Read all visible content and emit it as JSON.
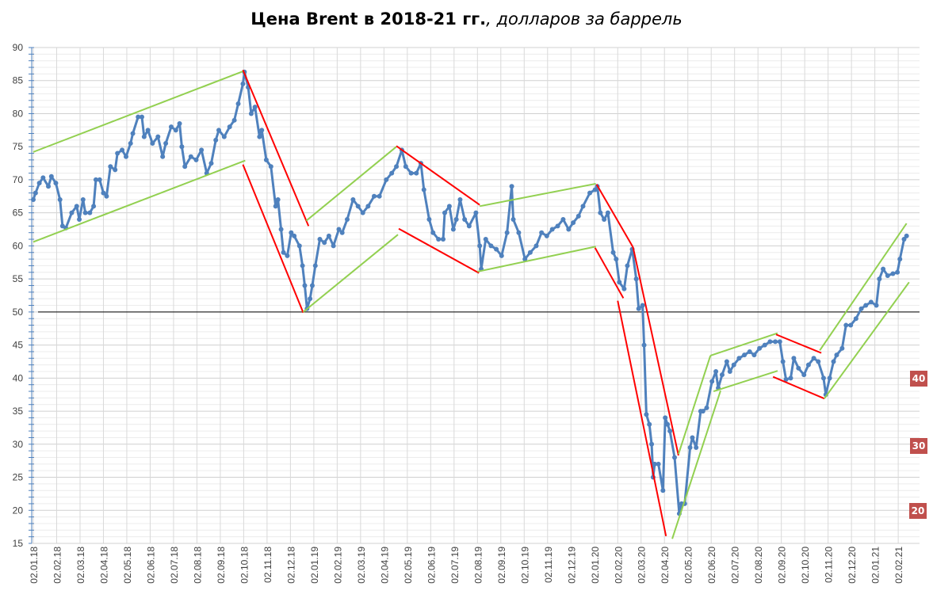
{
  "chart_data": {
    "type": "line",
    "title_bold": "Цена Brent в 2018-21 гг.",
    "title_italic": ", долларов за баррель",
    "xlabel": "",
    "ylabel": "",
    "ylim": [
      15,
      90
    ],
    "yticks": [
      "15",
      "20",
      "25",
      "30",
      "35",
      "40",
      "45",
      "50",
      "55",
      "60",
      "65",
      "70",
      "75",
      "80",
      "85",
      "90"
    ],
    "xticks": [
      "02.01.18",
      "02.02.18",
      "02.03.18",
      "02.04.18",
      "02.05.18",
      "02.06.18",
      "02.07.18",
      "02.08.18",
      "02.09.18",
      "02.10.18",
      "02.11.18",
      "02.12.18",
      "02.01.19",
      "02.02.19",
      "02.03.19",
      "02.04.19",
      "02.05.19",
      "02.06.19",
      "02.07.19",
      "02.08.19",
      "02.09.19",
      "02.10.19",
      "02.11.19",
      "02.12.19",
      "02.01.20",
      "02.02.20",
      "02.03.20",
      "02.04.20",
      "02.05.20",
      "02.06.20",
      "02.07.20",
      "02.08.20",
      "02.09.20",
      "02.10.20",
      "02.11.20",
      "02.12.20",
      "02.01.21",
      "02.02.21"
    ],
    "grid": true,
    "reference_line": {
      "value": 50,
      "color": "#000000"
    },
    "series_color": "#4f81bd",
    "series": [
      [
        "2018-01-02",
        67
      ],
      [
        "2018-01-05",
        68
      ],
      [
        "2018-01-10",
        69.5
      ],
      [
        "2018-01-15",
        70.3
      ],
      [
        "2018-01-22",
        69
      ],
      [
        "2018-01-26",
        70.5
      ],
      [
        "2018-02-01",
        69.5
      ],
      [
        "2018-02-06",
        67
      ],
      [
        "2018-02-09",
        63
      ],
      [
        "2018-02-13",
        62.7
      ],
      [
        "2018-02-20",
        65
      ],
      [
        "2018-02-26",
        66
      ],
      [
        "2018-03-01",
        64
      ],
      [
        "2018-03-06",
        67
      ],
      [
        "2018-03-09",
        65
      ],
      [
        "2018-03-15",
        65
      ],
      [
        "2018-03-20",
        66
      ],
      [
        "2018-03-23",
        70
      ],
      [
        "2018-03-28",
        70
      ],
      [
        "2018-04-02",
        68
      ],
      [
        "2018-04-06",
        67.5
      ],
      [
        "2018-04-11",
        72
      ],
      [
        "2018-04-17",
        71.5
      ],
      [
        "2018-04-20",
        74
      ],
      [
        "2018-04-26",
        74.5
      ],
      [
        "2018-05-01",
        73.5
      ],
      [
        "2018-05-07",
        75.5
      ],
      [
        "2018-05-10",
        77
      ],
      [
        "2018-05-17",
        79.5
      ],
      [
        "2018-05-22",
        79.5
      ],
      [
        "2018-05-25",
        76.5
      ],
      [
        "2018-05-30",
        77.5
      ],
      [
        "2018-06-05",
        75.5
      ],
      [
        "2018-06-12",
        76.5
      ],
      [
        "2018-06-18",
        73.5
      ],
      [
        "2018-06-22",
        75.5
      ],
      [
        "2018-06-29",
        78
      ],
      [
        "2018-07-05",
        77.5
      ],
      [
        "2018-07-10",
        78.5
      ],
      [
        "2018-07-13",
        75
      ],
      [
        "2018-07-17",
        72
      ],
      [
        "2018-07-25",
        73.5
      ],
      [
        "2018-08-01",
        73
      ],
      [
        "2018-08-08",
        74.5
      ],
      [
        "2018-08-15",
        71
      ],
      [
        "2018-08-21",
        72.5
      ],
      [
        "2018-08-27",
        76
      ],
      [
        "2018-08-31",
        77.5
      ],
      [
        "2018-09-07",
        76.5
      ],
      [
        "2018-09-14",
        78
      ],
      [
        "2018-09-20",
        79
      ],
      [
        "2018-09-25",
        81.5
      ],
      [
        "2018-10-01",
        84.5
      ],
      [
        "2018-10-03",
        86.3
      ],
      [
        "2018-10-08",
        84
      ],
      [
        "2018-10-12",
        80
      ],
      [
        "2018-10-17",
        81
      ],
      [
        "2018-10-23",
        76.5
      ],
      [
        "2018-10-26",
        77.5
      ],
      [
        "2018-11-01",
        73
      ],
      [
        "2018-11-07",
        72
      ],
      [
        "2018-11-13",
        66
      ],
      [
        "2018-11-16",
        67
      ],
      [
        "2018-11-20",
        62.5
      ],
      [
        "2018-11-23",
        59
      ],
      [
        "2018-11-28",
        58.5
      ],
      [
        "2018-12-03",
        62
      ],
      [
        "2018-12-07",
        61.5
      ],
      [
        "2018-12-14",
        60
      ],
      [
        "2018-12-18",
        57
      ],
      [
        "2018-12-21",
        54
      ],
      [
        "2018-12-24",
        50.5
      ],
      [
        "2018-12-28",
        52
      ],
      [
        "2018-12-31",
        54
      ],
      [
        "2019-01-04",
        57
      ],
      [
        "2019-01-10",
        61
      ],
      [
        "2019-01-16",
        60.5
      ],
      [
        "2019-01-22",
        61.5
      ],
      [
        "2019-01-28",
        60
      ],
      [
        "2019-02-04",
        62.5
      ],
      [
        "2019-02-08",
        62
      ],
      [
        "2019-02-14",
        64
      ],
      [
        "2019-02-21",
        67
      ],
      [
        "2019-02-27",
        66
      ],
      [
        "2019-03-05",
        65
      ],
      [
        "2019-03-12",
        66
      ],
      [
        "2019-03-20",
        67.5
      ],
      [
        "2019-03-27",
        67.5
      ],
      [
        "2019-04-05",
        70
      ],
      [
        "2019-04-12",
        71
      ],
      [
        "2019-04-18",
        72
      ],
      [
        "2019-04-25",
        74.5
      ],
      [
        "2019-04-30",
        72
      ],
      [
        "2019-05-07",
        71
      ],
      [
        "2019-05-14",
        71
      ],
      [
        "2019-05-20",
        72.5
      ],
      [
        "2019-05-24",
        68.5
      ],
      [
        "2019-05-31",
        64
      ],
      [
        "2019-06-05",
        62
      ],
      [
        "2019-06-12",
        61
      ],
      [
        "2019-06-18",
        61
      ],
      [
        "2019-06-20",
        65
      ],
      [
        "2019-06-26",
        66
      ],
      [
        "2019-07-01",
        62.5
      ],
      [
        "2019-07-05",
        64
      ],
      [
        "2019-07-10",
        67
      ],
      [
        "2019-07-16",
        64
      ],
      [
        "2019-07-22",
        63
      ],
      [
        "2019-07-31",
        65
      ],
      [
        "2019-08-05",
        60
      ],
      [
        "2019-08-07",
        56.5
      ],
      [
        "2019-08-13",
        61
      ],
      [
        "2019-08-20",
        60
      ],
      [
        "2019-08-27",
        59.5
      ],
      [
        "2019-09-03",
        58.5
      ],
      [
        "2019-09-10",
        62
      ],
      [
        "2019-09-16",
        69
      ],
      [
        "2019-09-18",
        64
      ],
      [
        "2019-09-25",
        62
      ],
      [
        "2019-10-03",
        58
      ],
      [
        "2019-10-10",
        59
      ],
      [
        "2019-10-18",
        60
      ],
      [
        "2019-10-25",
        62
      ],
      [
        "2019-11-01",
        61.5
      ],
      [
        "2019-11-08",
        62.5
      ],
      [
        "2019-11-15",
        63
      ],
      [
        "2019-11-22",
        64
      ],
      [
        "2019-11-29",
        62.5
      ],
      [
        "2019-12-05",
        63.5
      ],
      [
        "2019-12-12",
        64.5
      ],
      [
        "2019-12-18",
        66
      ],
      [
        "2019-12-27",
        68
      ],
      [
        "2020-01-03",
        68.5
      ],
      [
        "2020-01-06",
        69
      ],
      [
        "2020-01-10",
        65
      ],
      [
        "2020-01-15",
        64
      ],
      [
        "2020-01-20",
        65
      ],
      [
        "2020-01-27",
        59
      ],
      [
        "2020-01-31",
        58
      ],
      [
        "2020-02-04",
        54.5
      ],
      [
        "2020-02-10",
        53.5
      ],
      [
        "2020-02-14",
        57
      ],
      [
        "2020-02-20",
        59.5
      ],
      [
        "2020-02-25",
        55
      ],
      [
        "2020-02-28",
        50.5
      ],
      [
        "2020-03-04",
        51
      ],
      [
        "2020-03-06",
        45
      ],
      [
        "2020-03-09",
        34.5
      ],
      [
        "2020-03-13",
        33
      ],
      [
        "2020-03-16",
        30
      ],
      [
        "2020-03-18",
        25
      ],
      [
        "2020-03-20",
        27
      ],
      [
        "2020-03-25",
        27
      ],
      [
        "2020-03-31",
        23
      ],
      [
        "2020-04-03",
        34
      ],
      [
        "2020-04-06",
        33
      ],
      [
        "2020-04-09",
        32
      ],
      [
        "2020-04-15",
        28
      ],
      [
        "2020-04-21",
        19.5
      ],
      [
        "2020-04-24",
        21
      ],
      [
        "2020-04-28",
        21
      ],
      [
        "2020-05-05",
        29.5
      ],
      [
        "2020-05-08",
        31
      ],
      [
        "2020-05-13",
        29.5
      ],
      [
        "2020-05-19",
        35
      ],
      [
        "2020-05-22",
        35
      ],
      [
        "2020-05-27",
        35.5
      ],
      [
        "2020-06-03",
        39.5
      ],
      [
        "2020-06-08",
        41
      ],
      [
        "2020-06-11",
        38.5
      ],
      [
        "2020-06-16",
        40.5
      ],
      [
        "2020-06-22",
        42.5
      ],
      [
        "2020-06-26",
        41
      ],
      [
        "2020-07-01",
        42
      ],
      [
        "2020-07-08",
        43
      ],
      [
        "2020-07-15",
        43.5
      ],
      [
        "2020-07-22",
        44
      ],
      [
        "2020-07-28",
        43.5
      ],
      [
        "2020-08-04",
        44.5
      ],
      [
        "2020-08-11",
        45
      ],
      [
        "2020-08-18",
        45.5
      ],
      [
        "2020-08-25",
        45.5
      ],
      [
        "2020-08-31",
        45.5
      ],
      [
        "2020-09-04",
        42.5
      ],
      [
        "2020-09-08",
        39.8
      ],
      [
        "2020-09-14",
        40
      ],
      [
        "2020-09-18",
        43
      ],
      [
        "2020-09-24",
        41.5
      ],
      [
        "2020-10-01",
        40.5
      ],
      [
        "2020-10-07",
        42
      ],
      [
        "2020-10-14",
        43
      ],
      [
        "2020-10-20",
        42.5
      ],
      [
        "2020-10-27",
        40
      ],
      [
        "2020-10-30",
        37.5
      ],
      [
        "2020-11-04",
        40
      ],
      [
        "2020-11-09",
        42.5
      ],
      [
        "2020-11-13",
        43.5
      ],
      [
        "2020-11-20",
        44.5
      ],
      [
        "2020-11-25",
        48
      ],
      [
        "2020-12-01",
        48
      ],
      [
        "2020-12-08",
        49
      ],
      [
        "2020-12-15",
        50.5
      ],
      [
        "2020-12-21",
        51
      ],
      [
        "2020-12-28",
        51.5
      ],
      [
        "2021-01-04",
        51
      ],
      [
        "2021-01-08",
        55
      ],
      [
        "2021-01-13",
        56.5
      ],
      [
        "2021-01-19",
        55.5
      ],
      [
        "2021-01-26",
        55.8
      ],
      [
        "2021-02-01",
        56
      ],
      [
        "2021-02-04",
        58
      ],
      [
        "2021-02-09",
        61
      ],
      [
        "2021-02-12",
        61.5
      ]
    ],
    "trend_lines": [
      {
        "color": "#92d050",
        "from": [
          "2018-01-02",
          74.2
        ],
        "to": [
          "2018-10-01",
          86.4
        ]
      },
      {
        "color": "#92d050",
        "from": [
          "2018-01-02",
          60.6
        ],
        "to": [
          "2018-10-04",
          72.9
        ]
      },
      {
        "color": "#ff0000",
        "from": [
          "2018-10-01",
          86.6
        ],
        "to": [
          "2018-12-26",
          63.0
        ]
      },
      {
        "color": "#ff0000",
        "from": [
          "2018-10-01",
          72.3
        ],
        "to": [
          "2018-12-19",
          49.9
        ]
      },
      {
        "color": "#92d050",
        "from": [
          "2018-12-23",
          63.8
        ],
        "to": [
          "2019-04-18",
          75.0
        ]
      },
      {
        "color": "#92d050",
        "from": [
          "2018-12-19",
          50.0
        ],
        "to": [
          "2019-04-20",
          61.7
        ]
      },
      {
        "color": "#ff0000",
        "from": [
          "2019-04-18",
          75.1
        ],
        "to": [
          "2019-08-05",
          66.2
        ]
      },
      {
        "color": "#ff0000",
        "from": [
          "2019-04-21",
          62.6
        ],
        "to": [
          "2019-08-04",
          55.9
        ]
      },
      {
        "color": "#92d050",
        "from": [
          "2019-08-05",
          66.0
        ],
        "to": [
          "2020-01-04",
          69.4
        ]
      },
      {
        "color": "#92d050",
        "from": [
          "2019-08-02",
          56.1
        ],
        "to": [
          "2020-01-04",
          59.9
        ]
      },
      {
        "color": "#ff0000",
        "from": [
          "2020-01-05",
          69.3
        ],
        "to": [
          "2020-02-21",
          59.8
        ]
      },
      {
        "color": "#ff0000",
        "from": [
          "2020-01-03",
          59.7
        ],
        "to": [
          "2020-02-09",
          52.1
        ]
      },
      {
        "color": "#ff0000",
        "from": [
          "2020-02-21",
          59.8
        ],
        "to": [
          "2020-04-20",
          28.3
        ]
      },
      {
        "color": "#ff0000",
        "from": [
          "2020-02-02",
          51.7
        ],
        "to": [
          "2020-04-04",
          16.1
        ]
      },
      {
        "color": "#92d050",
        "from": [
          "2020-04-12",
          15.7
        ],
        "to": [
          "2020-06-14",
          38.1
        ]
      },
      {
        "color": "#92d050",
        "from": [
          "2020-04-20",
          28.5
        ],
        "to": [
          "2020-06-01",
          43.4
        ]
      },
      {
        "color": "#92d050",
        "from": [
          "2020-06-01",
          43.4
        ],
        "to": [
          "2020-08-28",
          46.8
        ]
      },
      {
        "color": "#92d050",
        "from": [
          "2020-06-05",
          38.0
        ],
        "to": [
          "2020-08-28",
          41.1
        ]
      },
      {
        "color": "#ff0000",
        "from": [
          "2020-08-26",
          46.6
        ],
        "to": [
          "2020-10-24",
          43.8
        ]
      },
      {
        "color": "#ff0000",
        "from": [
          "2020-08-22",
          40.2
        ],
        "to": [
          "2020-10-28",
          36.9
        ]
      },
      {
        "color": "#92d050",
        "from": [
          "2020-10-22",
          44.2
        ],
        "to": [
          "2021-02-12",
          63.4
        ]
      },
      {
        "color": "#92d050",
        "from": [
          "2020-10-28",
          36.9
        ],
        "to": [
          "2021-02-15",
          54.5
        ]
      }
    ],
    "badges": [
      {
        "text": "40",
        "color": "#c0504d"
      },
      {
        "text": "30",
        "color": "#c0504d"
      },
      {
        "text": "20",
        "color": "#c0504d"
      }
    ]
  }
}
